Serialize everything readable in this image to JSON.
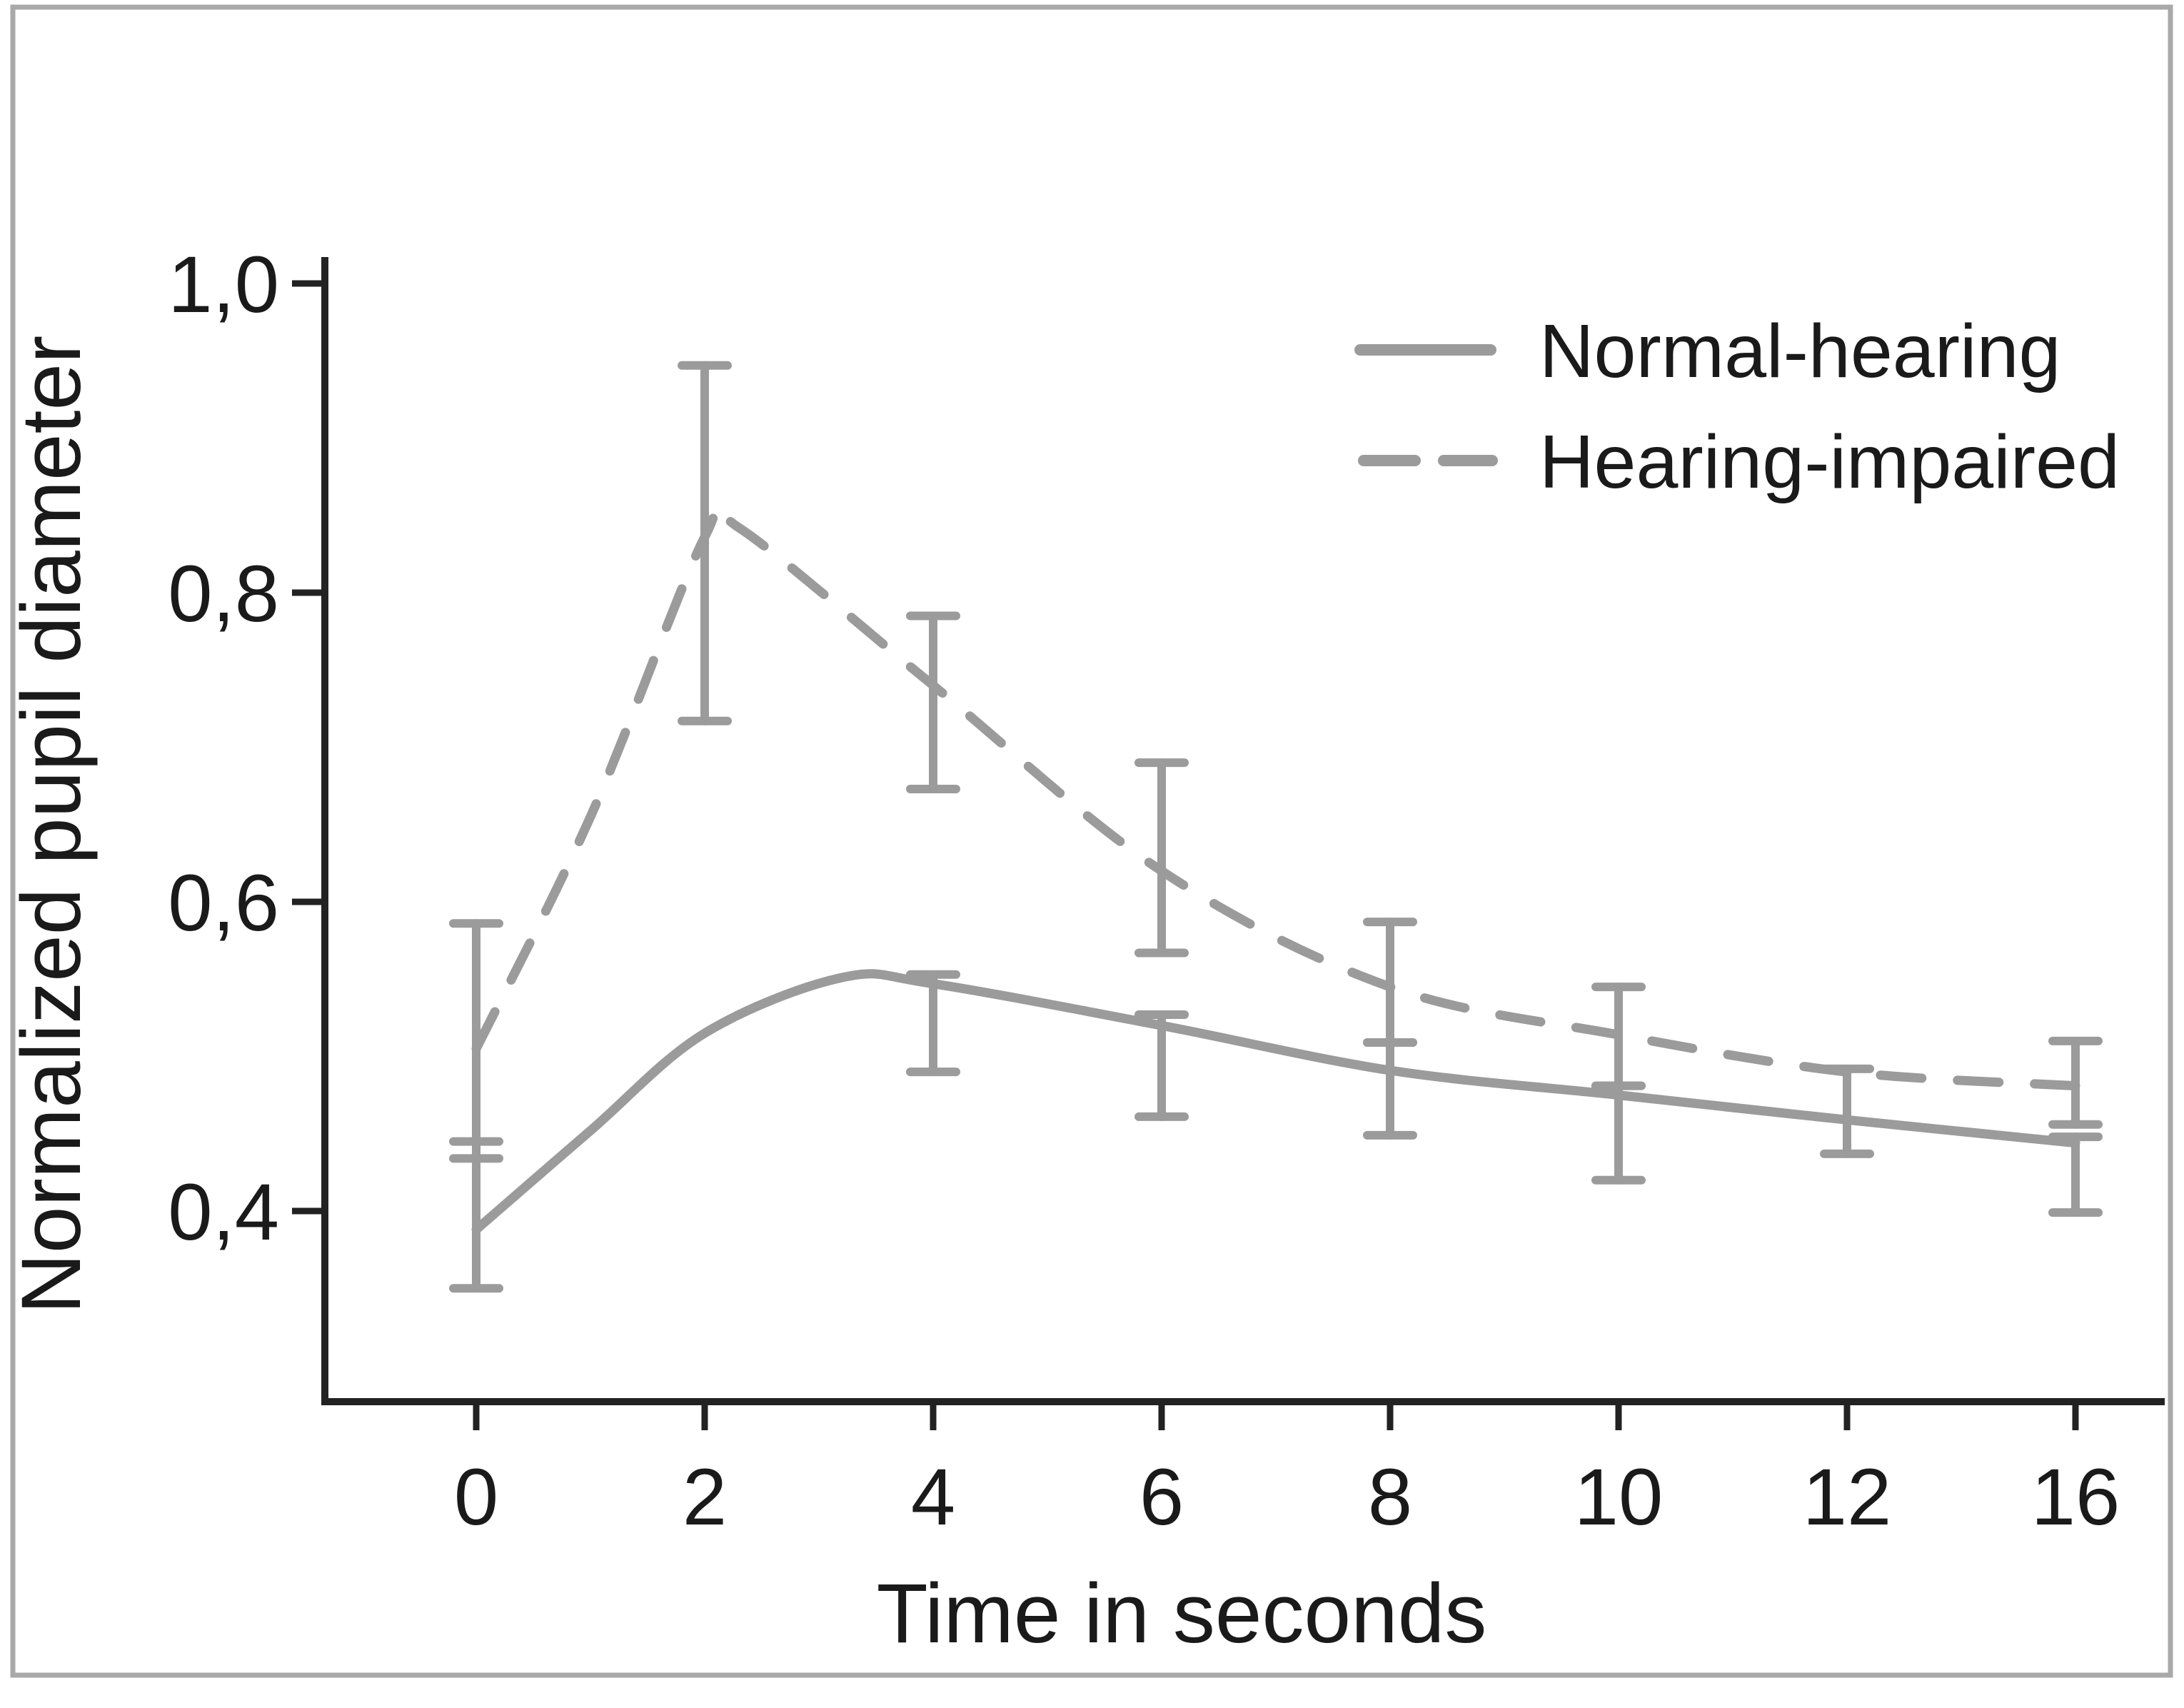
{
  "figure": {
    "border_color": "#a9a9a9",
    "axis_color": "#222222",
    "series_color": "#9b9b9b",
    "text_color": "#1a1a1a",
    "background": "#ffffff"
  },
  "chart_data": {
    "type": "line",
    "title": "",
    "xlabel": "Time in seconds",
    "ylabel": "Normalized pupil diameter",
    "categories": [
      0,
      2,
      4,
      6,
      8,
      10,
      12,
      16
    ],
    "x_tick_labels": [
      "0",
      "2",
      "4",
      "6",
      "8",
      "10",
      "12",
      "16"
    ],
    "y_tick_labels": [
      "1,0",
      "0,8",
      "0,6",
      "0,4"
    ],
    "y_tick_values": [
      1.0,
      0.8,
      0.6,
      0.4
    ],
    "ylim": [
      0.28,
      1.02
    ],
    "grid": "off",
    "legend_position": "top-right",
    "series": [
      {
        "name": "Normal-hearing",
        "style": "solid",
        "values": [
          0.39,
          0.515,
          0.545,
          0.52,
          0.49,
          0.475,
          0.46,
          0.445
        ],
        "error_bars": [
          {
            "x": 0,
            "lo": 0.35,
            "hi": 0.445
          },
          {
            "x": 4,
            "lo": 0.49,
            "hi": 0.553
          },
          {
            "x": 6,
            "lo": 0.461,
            "hi": 0.527
          },
          {
            "x": 8,
            "lo": 0.449,
            "hi": 0.509
          },
          {
            "x": 10,
            "lo": 0.42,
            "hi": 0.481
          },
          {
            "x": 12,
            "lo": 0.437,
            "hi": 0.492
          },
          {
            "x": 16,
            "lo": 0.399,
            "hi": 0.448
          }
        ],
        "smooth_path": [
          [
            0,
            0.388
          ],
          [
            0.5,
            0.452
          ],
          [
            1,
            0.515
          ],
          [
            1.6,
            0.551
          ],
          [
            2,
            0.547
          ],
          [
            3,
            0.52
          ],
          [
            4,
            0.491
          ],
          [
            5,
            0.475
          ],
          [
            6,
            0.459
          ],
          [
            7,
            0.444
          ]
        ]
      },
      {
        "name": "Hearing-impaired",
        "style": "dashed",
        "values": [
          0.51,
          0.835,
          0.74,
          0.62,
          0.545,
          0.515,
          0.49,
          0.48
        ],
        "error_bars": [
          {
            "x": 0,
            "lo": 0.434,
            "hi": 0.586
          },
          {
            "x": 2,
            "lo": 0.717,
            "hi": 0.947
          },
          {
            "x": 4,
            "lo": 0.673,
            "hi": 0.785
          },
          {
            "x": 6,
            "lo": 0.567,
            "hi": 0.69
          },
          {
            "x": 8,
            "lo": 0.509,
            "hi": 0.587
          },
          {
            "x": 10,
            "lo": 0.481,
            "hi": 0.545
          },
          {
            "x": 16,
            "lo": 0.456,
            "hi": 0.51
          }
        ],
        "smooth_path": [
          [
            0,
            0.505
          ],
          [
            0.5,
            0.655
          ],
          [
            1,
            0.836
          ],
          [
            1.15,
            0.842
          ],
          [
            2,
            0.74
          ],
          [
            3,
            0.62
          ],
          [
            4,
            0.545
          ],
          [
            5,
            0.514
          ],
          [
            6,
            0.49
          ],
          [
            7,
            0.481
          ]
        ]
      }
    ]
  }
}
